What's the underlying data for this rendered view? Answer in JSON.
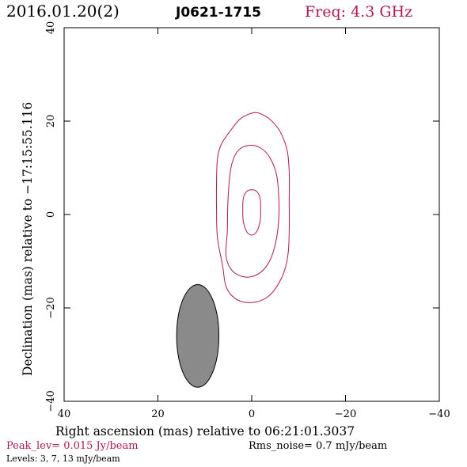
{
  "header": {
    "date": "2016.01.20(2)",
    "source": "J0621-1715",
    "freq": "Freq: 4.3 GHz"
  },
  "footer": {
    "peak": "Peak_lev=  0.015 Jy/beam",
    "rms": "Rms_noise=  0.7 mJy/beam",
    "levels": "Levels:   3,   7,  13 mJy/beam"
  },
  "colors": {
    "accent": "#b2184f",
    "beam_fill": "#8a8a8a",
    "axis": "#000000"
  },
  "chart_data": {
    "type": "contour",
    "xlabel": "Right ascension (mas) relative to 06:21:01.3037",
    "ylabel": "Declination (mas) relative to −17:15:55.116",
    "xlim": [
      40,
      -40
    ],
    "ylim": [
      -40,
      40
    ],
    "xticks": [
      40,
      20,
      0,
      -20,
      -40
    ],
    "yticks": [
      -40,
      -20,
      0,
      20,
      40
    ],
    "xtick_labels": [
      "40",
      "20",
      "0",
      "−20",
      "−40"
    ],
    "ytick_labels": [
      "−40",
      "−20",
      "0",
      "20",
      "40"
    ],
    "contour_levels_mJy": [
      3,
      7,
      13
    ],
    "contours": [
      {
        "level": 3,
        "points": [
          [
            -0.5,
            21.8
          ],
          [
            -2.5,
            21.3
          ],
          [
            -4.5,
            19.8
          ],
          [
            -6.3,
            17.3
          ],
          [
            -7.6,
            13.5
          ],
          [
            -8.0,
            9.0
          ],
          [
            -8.0,
            3.0
          ],
          [
            -8.0,
            -3.0
          ],
          [
            -7.8,
            -8.0
          ],
          [
            -7.0,
            -12.0
          ],
          [
            -5.3,
            -15.5
          ],
          [
            -3.2,
            -17.8
          ],
          [
            -0.5,
            -18.8
          ],
          [
            2.3,
            -18.6
          ],
          [
            4.4,
            -17.2
          ],
          [
            5.6,
            -15.0
          ],
          [
            6.2,
            -11.0
          ],
          [
            7.3,
            -5.0
          ],
          [
            7.5,
            1.0
          ],
          [
            7.5,
            7.0
          ],
          [
            7.3,
            12.0
          ],
          [
            6.5,
            15.0
          ],
          [
            4.5,
            18.0
          ],
          [
            2.3,
            20.6
          ],
          [
            -0.5,
            21.8
          ]
        ]
      },
      {
        "level": 7,
        "points": [
          [
            0.5,
            14.8
          ],
          [
            -1.8,
            14.3
          ],
          [
            -3.8,
            12.3
          ],
          [
            -5.3,
            8.5
          ],
          [
            -5.8,
            3.0
          ],
          [
            -5.7,
            -2.0
          ],
          [
            -5.0,
            -6.5
          ],
          [
            -3.8,
            -10.0
          ],
          [
            -2.0,
            -12.3
          ],
          [
            0.5,
            -13.4
          ],
          [
            3.0,
            -12.9
          ],
          [
            4.7,
            -11.3
          ],
          [
            5.5,
            -8.5
          ],
          [
            5.2,
            -3.5
          ],
          [
            5.1,
            2.0
          ],
          [
            4.8,
            7.0
          ],
          [
            4.2,
            11.0
          ],
          [
            2.8,
            13.8
          ],
          [
            0.5,
            14.8
          ]
        ]
      },
      {
        "level": 13,
        "points": [
          [
            0,
            5.3
          ],
          [
            -1.1,
            4.9
          ],
          [
            -1.8,
            3.4
          ],
          [
            -1.9,
            1.0
          ],
          [
            -1.8,
            -1.4
          ],
          [
            -1.1,
            -3.6
          ],
          [
            0,
            -4.4
          ],
          [
            1.1,
            -3.6
          ],
          [
            1.8,
            -1.4
          ],
          [
            1.9,
            1.0
          ],
          [
            1.8,
            3.4
          ],
          [
            1.1,
            4.9
          ],
          [
            0,
            5.3
          ]
        ]
      }
    ],
    "beam": {
      "center": [
        11.5,
        -26.0
      ],
      "major": 22.0,
      "minor": 9.0,
      "pa_deg": 0
    }
  }
}
